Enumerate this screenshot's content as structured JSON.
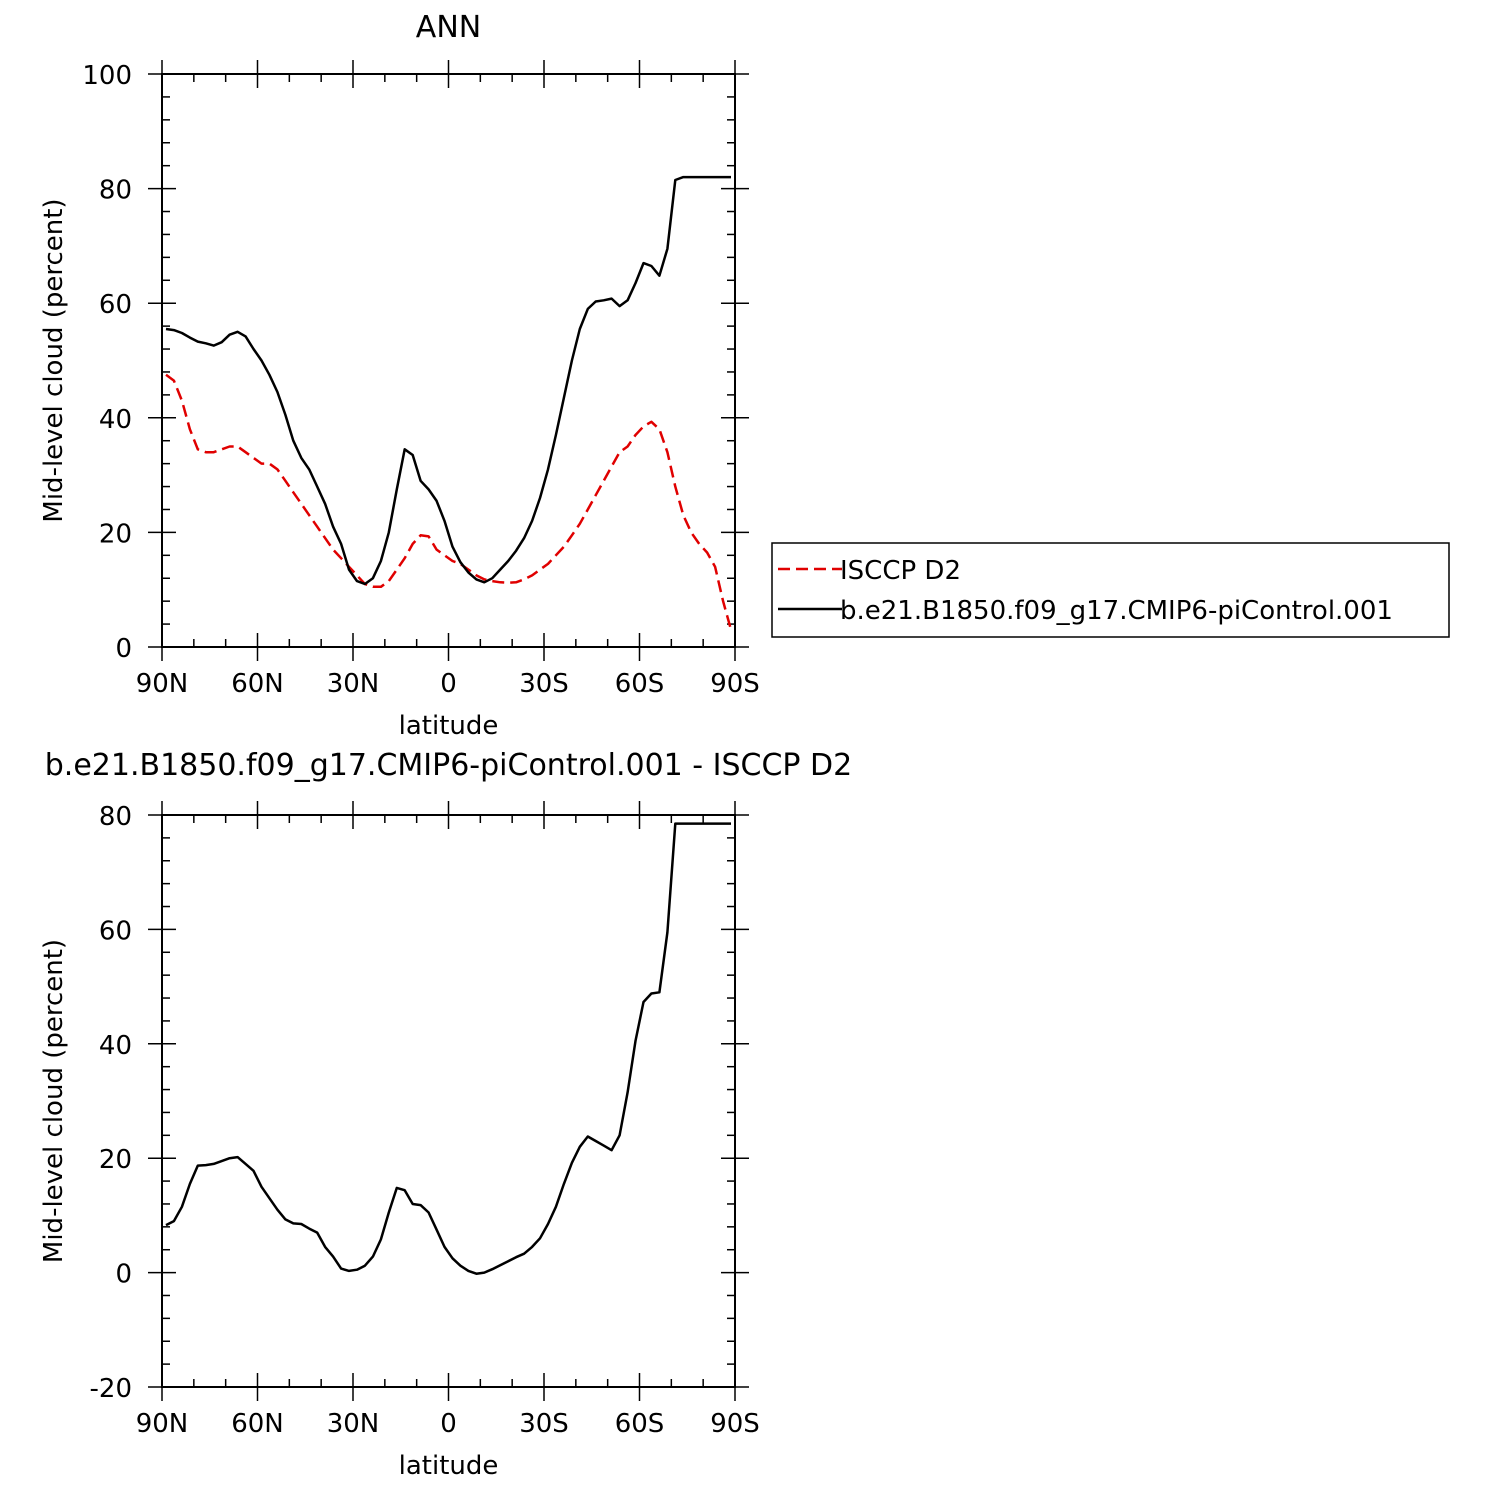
{
  "chart_data": [
    {
      "type": "line",
      "title": "ANN",
      "xlabel": "latitude",
      "ylabel": "Mid-level cloud (percent)",
      "xlim": [
        -90,
        90
      ],
      "ylim": [
        0,
        100
      ],
      "yticks": [
        "0",
        "20",
        "40",
        "60",
        "80",
        "100"
      ],
      "xticks": [
        "90N",
        "60N",
        "30N",
        "0",
        "30S",
        "60S",
        "90S"
      ],
      "legend_position": "right",
      "series": [
        {
          "name": "ISCCP D2",
          "color": "#e00000",
          "dash": "dashed",
          "x": [
            -88.75,
            -86.25,
            -83.75,
            -81.25,
            -78.75,
            -76.25,
            -73.75,
            -71.25,
            -68.75,
            -66.25,
            -63.75,
            -61.25,
            -58.75,
            -56.25,
            -53.75,
            -51.25,
            -48.75,
            -46.25,
            -43.75,
            -41.25,
            -38.75,
            -36.25,
            -33.75,
            -31.25,
            -28.75,
            -26.25,
            -23.75,
            -21.25,
            -18.75,
            -16.25,
            -13.75,
            -11.25,
            -8.75,
            -6.25,
            -3.75,
            -1.25,
            1.25,
            3.75,
            6.25,
            8.75,
            11.25,
            13.75,
            16.25,
            18.75,
            21.25,
            23.75,
            26.25,
            28.75,
            31.25,
            33.75,
            36.25,
            38.75,
            41.25,
            43.75,
            46.25,
            48.75,
            51.25,
            53.75,
            56.25,
            58.75,
            61.25,
            63.75,
            66.25,
            68.75,
            71.25,
            73.75,
            76.25,
            78.75,
            81.25,
            83.75,
            86.25,
            88.75
          ],
          "y": [
            47.5,
            46.5,
            43.0,
            38.0,
            34.5,
            34.0,
            34.0,
            34.5,
            35.0,
            35.0,
            34.0,
            33.0,
            32.0,
            32.0,
            31.0,
            29.0,
            27.0,
            25.0,
            23.0,
            21.0,
            19.0,
            17.0,
            15.5,
            14.0,
            12.5,
            11.0,
            10.5,
            10.5,
            11.5,
            13.5,
            15.5,
            18.0,
            19.5,
            19.3,
            17.0,
            16.0,
            15.0,
            14.5,
            13.5,
            12.5,
            11.8,
            11.5,
            11.3,
            11.2,
            11.3,
            11.8,
            12.5,
            13.5,
            14.5,
            16.0,
            17.5,
            19.5,
            21.5,
            24.0,
            26.5,
            29.0,
            31.5,
            34.0,
            35.0,
            37.0,
            38.5,
            39.3,
            38.0,
            34.0,
            28.0,
            23.0,
            20.0,
            18.0,
            16.5,
            14.0,
            8.0,
            3.0
          ]
        },
        {
          "name": "b.e21.B1850.f09_g17.CMIP6-piControl.001",
          "color": "#000000",
          "dash": "solid",
          "x": [
            -88.75,
            -86.25,
            -83.75,
            -81.25,
            -78.75,
            -76.25,
            -73.75,
            -71.25,
            -68.75,
            -66.25,
            -63.75,
            -61.25,
            -58.75,
            -56.25,
            -53.75,
            -51.25,
            -48.75,
            -46.25,
            -43.75,
            -41.25,
            -38.75,
            -36.25,
            -33.75,
            -31.25,
            -28.75,
            -26.25,
            -23.75,
            -21.25,
            -18.75,
            -16.25,
            -13.75,
            -11.25,
            -8.75,
            -6.25,
            -3.75,
            -1.25,
            1.25,
            3.75,
            6.25,
            8.75,
            11.25,
            13.75,
            16.25,
            18.75,
            21.25,
            23.75,
            26.25,
            28.75,
            31.25,
            33.75,
            36.25,
            38.75,
            41.25,
            43.75,
            46.25,
            48.75,
            51.25,
            53.75,
            56.25,
            58.75,
            61.25,
            63.75,
            66.25,
            68.75,
            71.25,
            73.75,
            76.25,
            78.75,
            81.25,
            83.75,
            86.25,
            88.75
          ],
          "y": [
            55.5,
            55.3,
            54.8,
            54.0,
            53.3,
            53.0,
            52.6,
            53.2,
            54.5,
            55.0,
            54.2,
            52.0,
            50.0,
            47.5,
            44.5,
            40.5,
            36.0,
            33.0,
            31.0,
            28.0,
            25.0,
            21.0,
            18.0,
            13.5,
            11.5,
            11.0,
            12.0,
            15.0,
            20.0,
            27.5,
            34.5,
            33.5,
            29.0,
            27.5,
            25.5,
            22.0,
            17.5,
            14.8,
            13.0,
            11.8,
            11.3,
            12.0,
            13.5,
            15.0,
            16.8,
            19.0,
            22.0,
            26.0,
            31.0,
            37.0,
            43.5,
            50.0,
            55.5,
            59.0,
            60.3,
            60.5,
            60.8,
            59.5,
            60.5,
            63.5,
            67.0,
            66.5,
            64.8,
            69.5,
            81.5,
            82.0,
            82.0,
            82.0,
            82.0,
            82.0,
            82.0,
            82.0
          ]
        }
      ]
    },
    {
      "type": "line",
      "title": "b.e21.B1850.f09_g17.CMIP6-piControl.001 - ISCCP D2",
      "xlabel": "latitude",
      "ylabel": "Mid-level cloud (percent)",
      "xlim": [
        -90,
        90
      ],
      "ylim": [
        -20,
        80
      ],
      "yticks": [
        "-20",
        "0",
        "20",
        "40",
        "60",
        "80"
      ],
      "xticks": [
        "90N",
        "60N",
        "30N",
        "0",
        "30S",
        "60S",
        "90S"
      ],
      "series": [
        {
          "color": "#000000",
          "dash": "solid",
          "x": [
            -88.75,
            -86.25,
            -83.75,
            -81.25,
            -78.75,
            -76.25,
            -73.75,
            -71.25,
            -68.75,
            -66.25,
            -63.75,
            -61.25,
            -58.75,
            -56.25,
            -53.75,
            -51.25,
            -48.75,
            -46.25,
            -43.75,
            -41.25,
            -38.75,
            -36.25,
            -33.75,
            -31.25,
            -28.75,
            -26.25,
            -23.75,
            -21.25,
            -18.75,
            -16.25,
            -13.75,
            -11.25,
            -8.75,
            -6.25,
            -3.75,
            -1.25,
            1.25,
            3.75,
            6.25,
            8.75,
            11.25,
            13.75,
            16.25,
            18.75,
            21.25,
            23.75,
            26.25,
            28.75,
            31.25,
            33.75,
            36.25,
            38.75,
            41.25,
            43.75,
            46.25,
            48.75,
            51.25,
            53.75,
            56.25,
            58.75,
            61.25,
            63.75,
            66.25,
            68.75,
            71.25,
            73.75,
            76.25,
            78.75,
            81.25,
            83.75,
            86.25,
            88.75
          ],
          "y": [
            8.3,
            9.0,
            11.5,
            15.5,
            18.7,
            18.8,
            19.0,
            19.5,
            20.0,
            20.2,
            19.0,
            17.8,
            15.0,
            13.0,
            11.0,
            9.3,
            8.6,
            8.5,
            7.7,
            7.0,
            4.5,
            2.8,
            0.7,
            0.3,
            0.5,
            1.2,
            2.8,
            5.8,
            10.5,
            14.8,
            14.4,
            12.0,
            11.8,
            10.5,
            7.5,
            4.5,
            2.5,
            1.2,
            0.3,
            -0.2,
            0.0,
            0.6,
            1.3,
            2.0,
            2.7,
            3.3,
            4.5,
            6.0,
            8.5,
            11.5,
            15.5,
            19.2,
            22.0,
            23.8,
            23.0,
            22.2,
            21.4,
            24.0,
            31.5,
            40.5,
            47.3,
            48.8,
            49.0,
            59.5,
            78.5,
            78.5,
            78.5,
            78.5,
            78.5,
            78.5,
            78.5,
            78.5
          ]
        }
      ]
    }
  ]
}
